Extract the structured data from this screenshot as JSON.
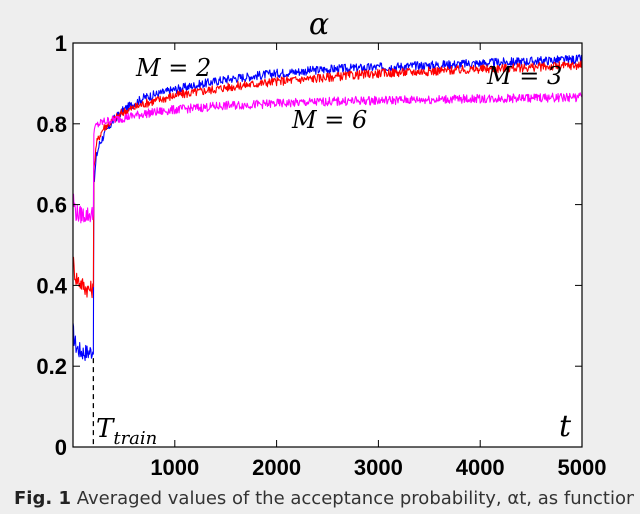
{
  "caption": {
    "label": "Fig. 1",
    "text": " Averaged values of the acceptance probability, αt, as function"
  },
  "chart_data": {
    "type": "line",
    "title": "α",
    "xlabel": "t",
    "ylabel": "",
    "xlim": [
      0,
      5000
    ],
    "ylim": [
      0,
      1
    ],
    "x_ticks": [
      "1000",
      "2000",
      "3000",
      "4000",
      "5000"
    ],
    "y_ticks": [
      "0",
      "0.2",
      "0.4",
      "0.6",
      "0.8",
      "1"
    ],
    "grid": false,
    "annotations": [
      {
        "text": "M = 2",
        "near_series": "M = 2"
      },
      {
        "text": "M = 3",
        "near_series": "M = 3"
      },
      {
        "text": "M = 6",
        "near_series": "M = 6"
      },
      {
        "text": "T_train",
        "marker": "dashed vertical line",
        "x": 200
      }
    ],
    "series": [
      {
        "name": "M = 2",
        "color": "#0000ff",
        "x": [
          0,
          10,
          30,
          60,
          100,
          150,
          200,
          210,
          230,
          260,
          300,
          400,
          500,
          700,
          1000,
          1500,
          2000,
          2500,
          3000,
          3500,
          4000,
          4500,
          5000
        ],
        "y": [
          0.29,
          0.27,
          0.25,
          0.24,
          0.235,
          0.235,
          0.24,
          0.66,
          0.72,
          0.75,
          0.77,
          0.81,
          0.835,
          0.865,
          0.885,
          0.91,
          0.925,
          0.935,
          0.94,
          0.945,
          0.95,
          0.955,
          0.96
        ]
      },
      {
        "name": "M = 3",
        "color": "#ff0000",
        "x": [
          0,
          10,
          30,
          60,
          100,
          150,
          200,
          210,
          230,
          260,
          300,
          400,
          500,
          700,
          1000,
          1500,
          2000,
          2500,
          3000,
          3500,
          4000,
          4500,
          5000
        ],
        "y": [
          0.47,
          0.44,
          0.42,
          0.41,
          0.4,
          0.39,
          0.39,
          0.7,
          0.75,
          0.77,
          0.79,
          0.81,
          0.83,
          0.85,
          0.87,
          0.89,
          0.905,
          0.915,
          0.925,
          0.93,
          0.935,
          0.94,
          0.945
        ]
      },
      {
        "name": "M = 6",
        "color": "#ff00ff",
        "x": [
          0,
          10,
          30,
          60,
          100,
          150,
          200,
          210,
          230,
          260,
          300,
          400,
          500,
          700,
          1000,
          1500,
          2000,
          2500,
          3000,
          3500,
          4000,
          4500,
          5000
        ],
        "y": [
          0.63,
          0.6,
          0.58,
          0.575,
          0.575,
          0.575,
          0.575,
          0.785,
          0.795,
          0.8,
          0.805,
          0.81,
          0.815,
          0.825,
          0.835,
          0.845,
          0.85,
          0.855,
          0.858,
          0.86,
          0.862,
          0.864,
          0.866
        ]
      }
    ]
  }
}
